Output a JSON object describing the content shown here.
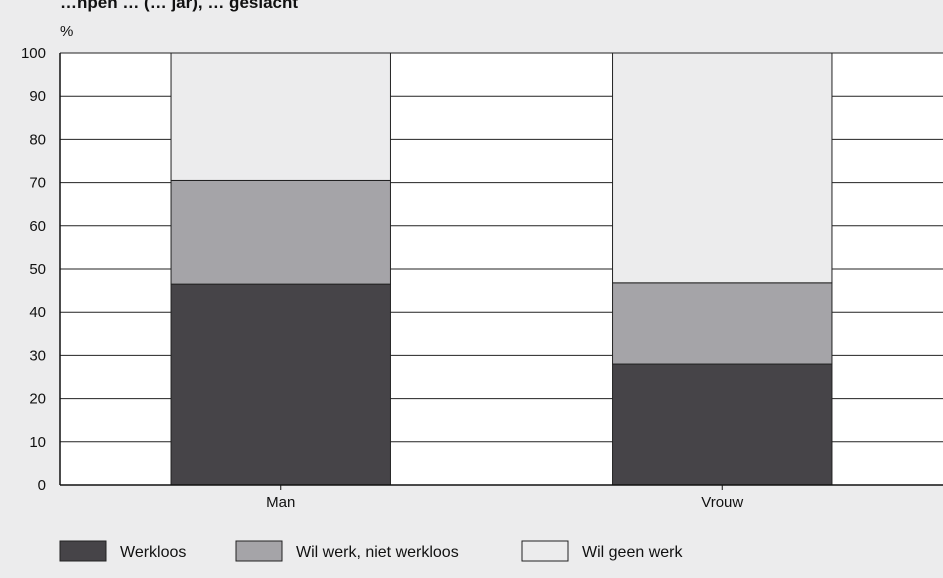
{
  "chart_data": {
    "type": "bar",
    "stacked": true,
    "title": "…npen … (… jar), … geslacht",
    "ylabel": "%",
    "ylim": [
      0,
      100
    ],
    "yticks": [
      0,
      10,
      20,
      30,
      40,
      50,
      60,
      70,
      80,
      90,
      100
    ],
    "grid": true,
    "categories": [
      "Man",
      "Vrouw"
    ],
    "series": [
      {
        "name": "Werkloos",
        "values": [
          46.5,
          28
        ],
        "color": "#464448"
      },
      {
        "name": "Wil werk, niet werkloos",
        "values": [
          24,
          18.8
        ],
        "color": "#a5a4a8"
      },
      {
        "name": "Wil geen werk",
        "values": [
          29.5,
          53.2
        ],
        "color": "#ececed"
      }
    ],
    "legend_position": "bottom"
  }
}
